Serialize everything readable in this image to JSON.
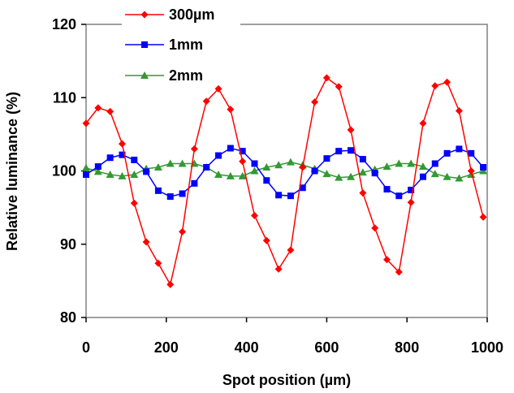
{
  "chart_data": {
    "type": "line",
    "xlabel": "Spot position (µm)",
    "ylabel": "Relative luminance (%)",
    "xlim": [
      0,
      1000
    ],
    "ylim": [
      80,
      120
    ],
    "xticks": [
      "0",
      "200",
      "400",
      "600",
      "800",
      "1000"
    ],
    "yticks": [
      "80",
      "90",
      "100",
      "110",
      "120"
    ],
    "grid": false,
    "legend_position": "top-left",
    "x": [
      0,
      30,
      60,
      90,
      120,
      150,
      180,
      210,
      240,
      270,
      300,
      330,
      360,
      390,
      420,
      450,
      480,
      510,
      540,
      570,
      600,
      630,
      660,
      690,
      720,
      750,
      780,
      810,
      840,
      870,
      900,
      930,
      960,
      990
    ],
    "series": [
      {
        "name": "300µm",
        "color": "#ff0000",
        "marker": "diamond",
        "values": [
          106.5,
          108.6,
          108.1,
          103.7,
          95.6,
          90.3,
          87.4,
          84.5,
          91.7,
          103.0,
          109.5,
          111.2,
          108.4,
          101.3,
          93.9,
          90.5,
          86.6,
          89.2,
          100.5,
          109.4,
          112.7,
          111.5,
          105.6,
          97.0,
          92.2,
          87.9,
          86.2,
          95.7,
          106.5,
          111.6,
          112.1,
          108.2,
          100.0,
          93.7
        ]
      },
      {
        "name": "1mm",
        "color": "#0000ff",
        "marker": "square",
        "values": [
          99.5,
          100.6,
          101.8,
          102.2,
          101.5,
          99.9,
          97.3,
          96.5,
          96.9,
          98.3,
          100.5,
          102.1,
          103.1,
          102.7,
          101.0,
          98.7,
          96.7,
          96.6,
          97.7,
          100.0,
          101.7,
          102.7,
          102.8,
          101.6,
          99.7,
          97.5,
          96.6,
          97.4,
          99.2,
          101.0,
          102.4,
          103.0,
          102.4,
          100.5
        ]
      },
      {
        "name": "2mm",
        "color": "#339933",
        "marker": "triangle",
        "values": [
          100.4,
          99.9,
          99.5,
          99.3,
          99.5,
          100.3,
          100.5,
          101.0,
          101.0,
          101.0,
          100.5,
          99.5,
          99.3,
          99.3,
          100.0,
          100.5,
          100.8,
          101.2,
          100.8,
          100.3,
          99.6,
          99.1,
          99.2,
          99.8,
          100.2,
          100.6,
          101.0,
          101.0,
          100.6,
          99.6,
          99.2,
          99.0,
          99.5,
          100.0
        ]
      }
    ]
  }
}
